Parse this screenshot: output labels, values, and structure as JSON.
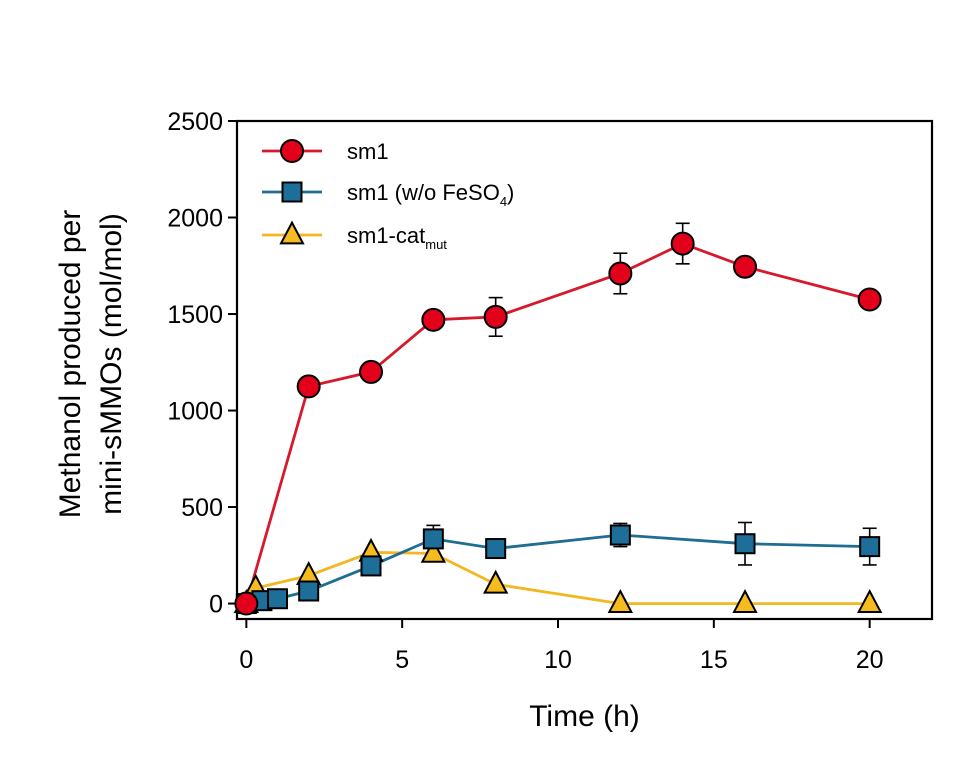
{
  "chart_data": {
    "type": "line",
    "xlabel": "Time (h)",
    "ylabel_lines": [
      "Methanol produced per",
      "mini-sMMOs (mol/mol)"
    ],
    "xlim": [
      -0.3,
      22.0
    ],
    "ylim": [
      -80,
      2500
    ],
    "xticks": [
      0,
      5,
      10,
      15,
      20
    ],
    "yticks": [
      0,
      500,
      1000,
      1500,
      2000,
      2500
    ],
    "grid": false,
    "legend_position": "top-left",
    "series": [
      {
        "name": "sm1",
        "marker": "circle",
        "color": "#e3001b",
        "line_color": "#d7192c",
        "x": [
          0,
          2,
          4,
          6,
          8,
          12,
          14,
          16,
          20
        ],
        "y": [
          0,
          1125,
          1200,
          1470,
          1485,
          1710,
          1865,
          1745,
          1575
        ],
        "err": [
          0,
          35,
          45,
          30,
          100,
          105,
          105,
          25,
          20
        ]
      },
      {
        "name": "sm1 (w/o FeSO",
        "name_sub": "4",
        "name_suffix": ")",
        "marker": "square",
        "color": "#1e6e9a",
        "line_color": "#1f6d92",
        "x": [
          0,
          0.5,
          1,
          2,
          4,
          6,
          8,
          12,
          16,
          20
        ],
        "y": [
          0,
          15,
          25,
          65,
          195,
          335,
          285,
          355,
          310,
          295
        ],
        "err": [
          0,
          0,
          0,
          15,
          25,
          70,
          25,
          60,
          110,
          95
        ]
      },
      {
        "name": "sm1-cat",
        "name_sub": "mut",
        "name_suffix": "",
        "marker": "triangle",
        "color": "#f6bb1f",
        "line_color": "#f2b81f",
        "x": [
          0,
          0.3,
          2,
          4,
          6,
          8,
          12,
          16,
          20
        ],
        "y": [
          0,
          80,
          145,
          265,
          260,
          100,
          0,
          0,
          0
        ],
        "err": [
          0,
          0,
          0,
          0,
          0,
          0,
          0,
          0,
          0
        ]
      }
    ]
  }
}
